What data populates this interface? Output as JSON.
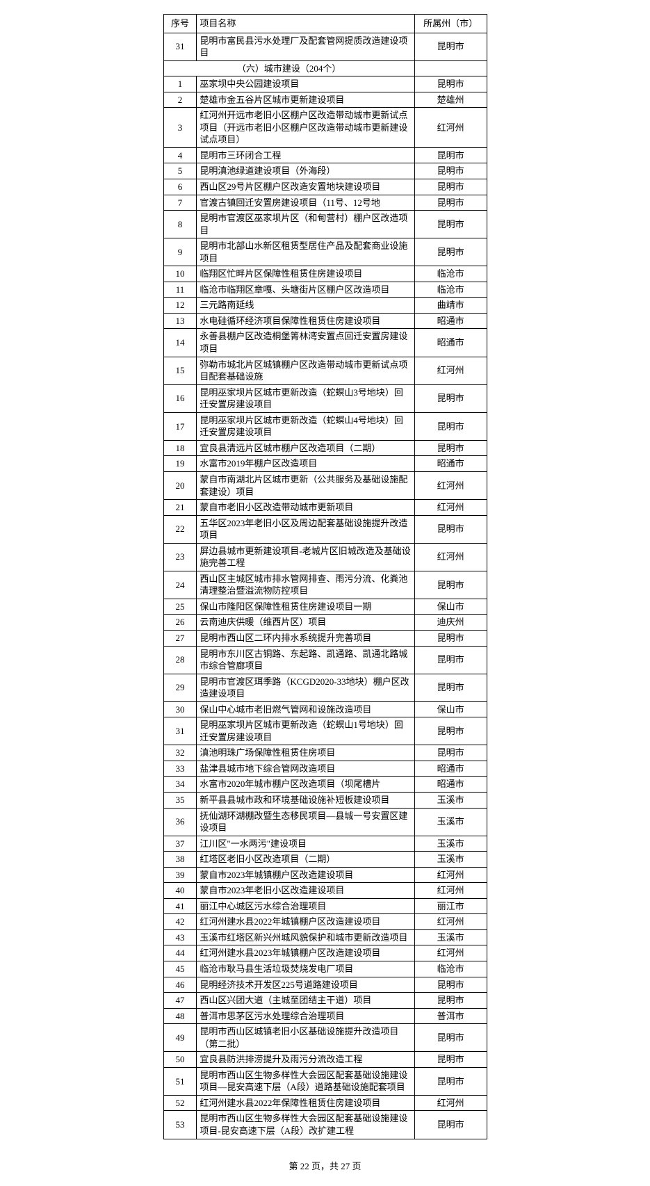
{
  "headers": {
    "num": "序号",
    "name": "项目名称",
    "city": "所属州（市）"
  },
  "preRows": [
    {
      "num": "31",
      "name": "昆明市富民县污水处理厂及配套管网提质改造建设项目",
      "city": "昆明市"
    }
  ],
  "sectionTitle": "（六）城市建设（204个）",
  "rows": [
    {
      "num": "1",
      "name": "巫家坝中央公园建设项目",
      "city": "昆明市"
    },
    {
      "num": "2",
      "name": "楚雄市金五谷片区城市更新建设项目",
      "city": "楚雄州"
    },
    {
      "num": "3",
      "name": "红河州开远市老旧小区棚户区改造带动城市更新试点项目（开远市老旧小区棚户区改造带动城市更新建设试点项目）",
      "city": "红河州"
    },
    {
      "num": "4",
      "name": "昆明市三环闭合工程",
      "city": "昆明市"
    },
    {
      "num": "5",
      "name": "昆明滇池绿道建设项目（外海段）",
      "city": "昆明市"
    },
    {
      "num": "6",
      "name": "西山区29号片区棚户区改造安置地块建设项目",
      "city": "昆明市"
    },
    {
      "num": "7",
      "name": "官渡古镇回迁安置房建设项目（11号、12号地",
      "city": "昆明市"
    },
    {
      "num": "8",
      "name": "昆明市官渡区巫家坝片区（和甸营村）棚户区改造项目",
      "city": "昆明市"
    },
    {
      "num": "9",
      "name": "昆明市北部山水新区租赁型居住产品及配套商业设施项目",
      "city": "昆明市"
    },
    {
      "num": "10",
      "name": "临翔区忙畔片区保障性租赁住房建设项目",
      "city": "临沧市"
    },
    {
      "num": "11",
      "name": "临沧市临翔区章嘎、头塘街片区棚户区改造项目",
      "city": "临沧市"
    },
    {
      "num": "12",
      "name": "三元路南延线",
      "city": "曲靖市"
    },
    {
      "num": "13",
      "name": "水电硅循环经济项目保障性租赁住房建设项目",
      "city": "昭通市"
    },
    {
      "num": "14",
      "name": "永善县棚户区改造桐堡箐林湾安置点回迁安置房建设项目",
      "city": "昭通市"
    },
    {
      "num": "15",
      "name": "弥勒市城北片区城镇棚户区改造带动城市更新试点项目配套基础设施",
      "city": "红河州"
    },
    {
      "num": "16",
      "name": "昆明巫家坝片区城市更新改造（蛇螟山3号地块）回迁安置房建设项目",
      "city": "昆明市"
    },
    {
      "num": "17",
      "name": "昆明巫家坝片区城市更新改造（蛇螟山4号地块）回迁安置房建设项目",
      "city": "昆明市"
    },
    {
      "num": "18",
      "name": "宜良县清远片区城市棚户区改造项目（二期）",
      "city": "昆明市"
    },
    {
      "num": "19",
      "name": "水富市2019年棚户区改造项目",
      "city": "昭通市"
    },
    {
      "num": "20",
      "name": "蒙自市南湖北片区城市更新（公共服务及基础设施配套建设）项目",
      "city": "红河州"
    },
    {
      "num": "21",
      "name": "蒙自市老旧小区改造带动城市更新项目",
      "city": "红河州"
    },
    {
      "num": "22",
      "name": "五华区2023年老旧小区及周边配套基础设施提升改造项目",
      "city": "昆明市"
    },
    {
      "num": "23",
      "name": "屏边县城市更新建设项目-老城片区旧城改造及基础设施完善工程",
      "city": "红河州"
    },
    {
      "num": "24",
      "name": "西山区主城区城市排水管网排查、雨污分流、化粪池清理整治暨溢流物防控项目",
      "city": "昆明市"
    },
    {
      "num": "25",
      "name": "保山市隆阳区保障性租赁住房建设项目一期",
      "city": "保山市"
    },
    {
      "num": "26",
      "name": "云南迪庆供暖（维西片区）项目",
      "city": "迪庆州"
    },
    {
      "num": "27",
      "name": "昆明市西山区二环内排水系统提升完善项目",
      "city": "昆明市"
    },
    {
      "num": "28",
      "name": "昆明市东川区古铜路、东起路、凯通路、凯通北路城市综合管廊项目",
      "city": "昆明市"
    },
    {
      "num": "29",
      "name": "昆明市官渡区珥季路（KCGD2020-33地块）棚户区改造建设项目",
      "city": "昆明市"
    },
    {
      "num": "30",
      "name": "保山中心城市老旧燃气管网和设施改造项目",
      "city": "保山市"
    },
    {
      "num": "31",
      "name": "昆明巫家坝片区城市更新改造（蛇螟山1号地块）回迁安置房建设项目",
      "city": "昆明市"
    },
    {
      "num": "32",
      "name": "滇池明珠广场保障性租赁住房项目",
      "city": "昆明市"
    },
    {
      "num": "33",
      "name": "盐津县城市地下综合管网改造项目",
      "city": "昭通市"
    },
    {
      "num": "34",
      "name": "水富市2020年城市棚户区改造项目（坝尾槽片",
      "city": "昭通市"
    },
    {
      "num": "35",
      "name": "新平县县城市政和环境基础设施补短板建设项目",
      "city": "玉溪市"
    },
    {
      "num": "36",
      "name": "抚仙湖环湖棚改暨生态移民项目—县城一号安置区建设项目",
      "city": "玉溪市"
    },
    {
      "num": "37",
      "name": "江川区\"一水两污\"建设项目",
      "city": "玉溪市"
    },
    {
      "num": "38",
      "name": "红塔区老旧小区改造项目（二期）",
      "city": "玉溪市"
    },
    {
      "num": "39",
      "name": "蒙自市2023年城镇棚户区改造建设项目",
      "city": "红河州"
    },
    {
      "num": "40",
      "name": "蒙自市2023年老旧小区改造建设项目",
      "city": "红河州"
    },
    {
      "num": "41",
      "name": "丽江中心城区污水综合治理项目",
      "city": "丽江市"
    },
    {
      "num": "42",
      "name": "红河州建水县2022年城镇棚户区改造建设项目",
      "city": "红河州"
    },
    {
      "num": "43",
      "name": "玉溪市红塔区新兴州城风貌保护和城市更新改造项目",
      "city": "玉溪市"
    },
    {
      "num": "44",
      "name": "红河州建水县2023年城镇棚户区改造建设项目",
      "city": "红河州"
    },
    {
      "num": "45",
      "name": "临沧市耿马县生活垃圾焚烧发电厂项目",
      "city": "临沧市"
    },
    {
      "num": "46",
      "name": "昆明经济技术开发区225号道路建设项目",
      "city": "昆明市"
    },
    {
      "num": "47",
      "name": "西山区兴团大道（主城至团结主干道）项目",
      "city": "昆明市"
    },
    {
      "num": "48",
      "name": "普洱市思茅区污水处理综合治理项目",
      "city": "普洱市"
    },
    {
      "num": "49",
      "name": "昆明市西山区城镇老旧小区基础设施提升改造项目（第二批）",
      "city": "昆明市"
    },
    {
      "num": "50",
      "name": "宜良县防洪排涝提升及雨污分流改造工程",
      "city": "昆明市"
    },
    {
      "num": "51",
      "name": "昆明市西山区生物多样性大会园区配套基础设施建设项目—昆安高速下层（A段）道路基础设施配套项目",
      "city": "昆明市"
    },
    {
      "num": "52",
      "name": "红河州建水县2022年保障性租赁住房建设项目",
      "city": "红河州"
    },
    {
      "num": "53",
      "name": "昆明市西山区生物多样性大会园区配套基础设施建设项目-昆安高速下层（A段）改扩建工程",
      "city": "昆明市"
    }
  ],
  "footer": {
    "text": "第 22 页，共 27 页"
  }
}
